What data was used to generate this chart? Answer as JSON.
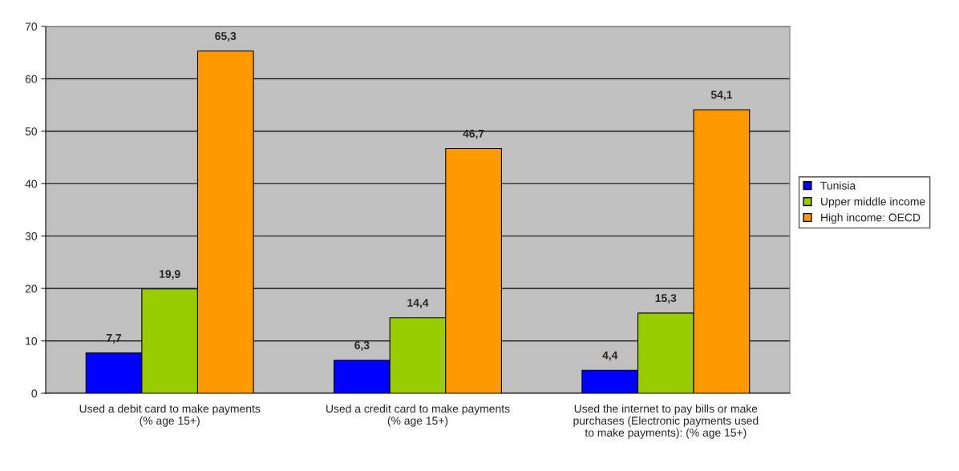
{
  "chart_data": {
    "type": "bar",
    "categories": [
      "Used a debit card to make payments\n(% age 15+)",
      "Used a credit card to make payments\n(% age 15+)",
      "Used the internet to pay bills or make\npurchases (Electronic payments used\nto make payments): (% age 15+)"
    ],
    "series": [
      {
        "name": "Tunisia",
        "color": "#0000ff",
        "values": [
          7.7,
          6.3,
          4.4
        ],
        "value_labels": [
          "7,7",
          "6,3",
          "4,4"
        ]
      },
      {
        "name": "Upper middle income",
        "color": "#99cc00",
        "values": [
          19.9,
          14.4,
          15.3
        ],
        "value_labels": [
          "19,9",
          "14,4",
          "15,3"
        ]
      },
      {
        "name": "High income: OECD",
        "color": "#ff9900",
        "values": [
          65.3,
          46.7,
          54.1
        ],
        "value_labels": [
          "65,3",
          "46,7",
          "54,1"
        ]
      }
    ],
    "ylim": [
      0,
      70
    ],
    "yticks": [
      0,
      10,
      20,
      30,
      40,
      50,
      60,
      70
    ],
    "grid": "y",
    "legend": "right"
  }
}
